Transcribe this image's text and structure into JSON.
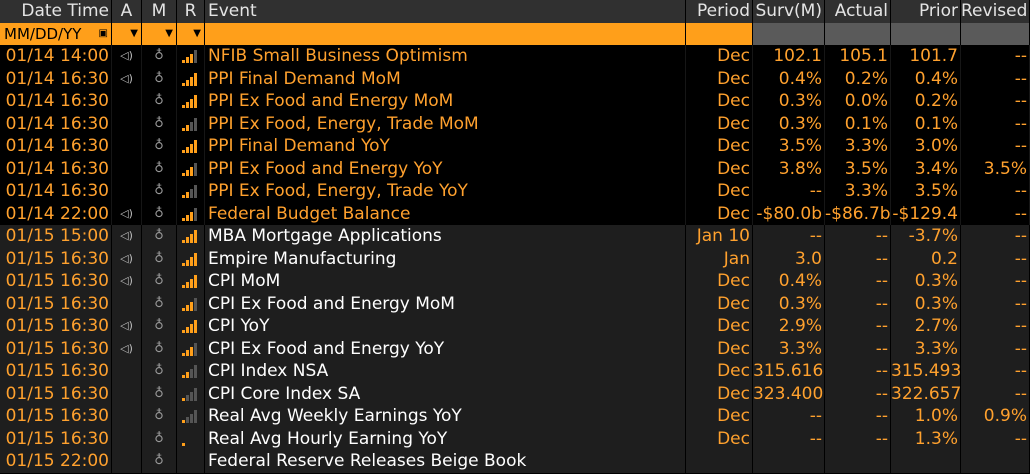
{
  "header": {
    "date_time": "Date Time",
    "a": "A",
    "m": "M",
    "r": "R",
    "event": "Event",
    "period": "Period",
    "survey": "Surv(M)",
    "actual": "Actual",
    "prior": "Prior",
    "revised": "Revised"
  },
  "filter": {
    "date_format": "MM/DD/YY"
  },
  "colors": {
    "accent": "#ff9f1a",
    "header_bg": "#303030",
    "row_alt": "#1e1e1e"
  },
  "rows": [
    {
      "dt": "01/14 14:00",
      "alert": "speaker-icon",
      "rel": 3,
      "event": "NFIB Small Business Optimism",
      "period": "Dec",
      "surv": "102.1",
      "actual": "105.1",
      "prior": "101.7",
      "revised": "--",
      "shade": "dark",
      "color": "o"
    },
    {
      "dt": "01/14 16:30",
      "alert": "speaker-icon",
      "rel": 4,
      "event": "PPI Final Demand MoM",
      "period": "Dec",
      "surv": "0.4%",
      "actual": "0.2%",
      "prior": "0.4%",
      "revised": "--",
      "shade": "dark",
      "color": "o"
    },
    {
      "dt": "01/14 16:30",
      "alert": "",
      "rel": 4,
      "event": "PPI Ex Food and Energy MoM",
      "period": "Dec",
      "surv": "0.3%",
      "actual": "0.0%",
      "prior": "0.2%",
      "revised": "--",
      "shade": "dark",
      "color": "o"
    },
    {
      "dt": "01/14 16:30",
      "alert": "",
      "rel": 2,
      "event": "PPI Ex Food, Energy, Trade MoM",
      "period": "Dec",
      "surv": "0.3%",
      "actual": "0.1%",
      "prior": "0.1%",
      "revised": "--",
      "shade": "dark",
      "color": "o"
    },
    {
      "dt": "01/14 16:30",
      "alert": "",
      "rel": 4,
      "event": "PPI Final Demand YoY",
      "period": "Dec",
      "surv": "3.5%",
      "actual": "3.3%",
      "prior": "3.0%",
      "revised": "--",
      "shade": "dark",
      "color": "o"
    },
    {
      "dt": "01/14 16:30",
      "alert": "",
      "rel": 3,
      "event": "PPI Ex Food and Energy YoY",
      "period": "Dec",
      "surv": "3.8%",
      "actual": "3.5%",
      "prior": "3.4%",
      "revised": "3.5%",
      "shade": "dark",
      "color": "o"
    },
    {
      "dt": "01/14 16:30",
      "alert": "",
      "rel": 2,
      "event": "PPI Ex Food, Energy, Trade YoY",
      "period": "Dec",
      "surv": "--",
      "actual": "3.3%",
      "prior": "3.5%",
      "revised": "--",
      "shade": "dark",
      "color": "o"
    },
    {
      "dt": "01/14 22:00",
      "alert": "speaker-icon",
      "rel": 3,
      "event": "Federal Budget Balance",
      "period": "Dec",
      "surv": "-$80.0b",
      "actual": "-$86.7b",
      "prior": "-$129.4",
      "revised": "--",
      "shade": "dark",
      "color": "o"
    },
    {
      "dt": "01/15 15:00",
      "alert": "speaker-icon",
      "rel": 4,
      "event": "MBA Mortgage Applications",
      "period": "Jan 10",
      "surv": "--",
      "actual": "--",
      "prior": "-3.7%",
      "revised": "--",
      "shade": "lite",
      "color": "w"
    },
    {
      "dt": "01/15 16:30",
      "alert": "speaker-icon",
      "rel": 4,
      "event": "Empire Manufacturing",
      "period": "Jan",
      "surv": "3.0",
      "actual": "--",
      "prior": "0.2",
      "revised": "--",
      "shade": "lite",
      "color": "w"
    },
    {
      "dt": "01/15 16:30",
      "alert": "speaker-icon",
      "rel": 4,
      "event": "CPI MoM",
      "period": "Dec",
      "surv": "0.4%",
      "actual": "--",
      "prior": "0.3%",
      "revised": "--",
      "shade": "lite",
      "color": "w"
    },
    {
      "dt": "01/15 16:30",
      "alert": "",
      "rel": 3,
      "event": "CPI Ex Food and Energy MoM",
      "period": "Dec",
      "surv": "0.3%",
      "actual": "--",
      "prior": "0.3%",
      "revised": "--",
      "shade": "lite",
      "color": "w"
    },
    {
      "dt": "01/15 16:30",
      "alert": "speaker-icon",
      "rel": 4,
      "event": "CPI YoY",
      "period": "Dec",
      "surv": "2.9%",
      "actual": "--",
      "prior": "2.7%",
      "revised": "--",
      "shade": "lite",
      "color": "w"
    },
    {
      "dt": "01/15 16:30",
      "alert": "speaker-icon",
      "rel": 3,
      "event": "CPI Ex Food and Energy YoY",
      "period": "Dec",
      "surv": "3.3%",
      "actual": "--",
      "prior": "3.3%",
      "revised": "--",
      "shade": "lite",
      "color": "w"
    },
    {
      "dt": "01/15 16:30",
      "alert": "",
      "rel": 2,
      "event": "CPI Index NSA",
      "period": "Dec",
      "surv": "315.616",
      "actual": "--",
      "prior": "315.493",
      "revised": "--",
      "shade": "lite",
      "color": "w"
    },
    {
      "dt": "01/15 16:30",
      "alert": "",
      "rel": 1,
      "event": "CPI Core Index SA",
      "period": "Dec",
      "surv": "323.400",
      "actual": "--",
      "prior": "322.657",
      "revised": "--",
      "shade": "lite",
      "color": "w"
    },
    {
      "dt": "01/15 16:30",
      "alert": "",
      "rel": 1,
      "event": "Real Avg Weekly Earnings YoY",
      "period": "Dec",
      "surv": "--",
      "actual": "--",
      "prior": "1.0%",
      "revised": "0.9%",
      "shade": "lite",
      "color": "w"
    },
    {
      "dt": "01/15 16:30",
      "alert": "",
      "rel": 0,
      "event": "Real Avg Hourly Earning YoY",
      "period": "Dec",
      "surv": "--",
      "actual": "--",
      "prior": "1.3%",
      "revised": "--",
      "shade": "lite",
      "color": "w"
    },
    {
      "dt": "01/15 22:00",
      "alert": "",
      "rel": 0,
      "event": "Federal Reserve Releases Beige Book",
      "period": "",
      "surv": "",
      "actual": "",
      "prior": "",
      "revised": "",
      "shade": "lite",
      "color": "w",
      "nobell": false
    }
  ]
}
